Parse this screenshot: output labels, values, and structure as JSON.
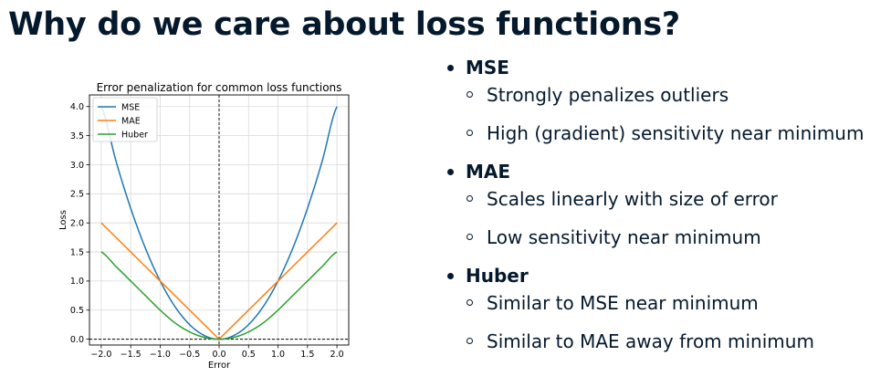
{
  "slide": {
    "title": "Why do we care about loss functions?"
  },
  "bullets": [
    {
      "heading": "MSE",
      "subs": [
        "Strongly penalizes outliers",
        "High (gradient) sensitivity near minimum"
      ]
    },
    {
      "heading": "MAE",
      "subs": [
        "Scales linearly with size of error",
        "Low sensitivity near minimum"
      ]
    },
    {
      "heading": "Huber",
      "subs": [
        "Similar to MSE near minimum",
        "Similar to MAE away from minimum"
      ]
    }
  ],
  "chart_data": {
    "type": "line",
    "title": "Error penalization for common loss functions",
    "xlabel": "Error",
    "ylabel": "Loss",
    "xlim": [
      -2.2,
      2.2
    ],
    "ylim": [
      -0.1,
      4.2
    ],
    "xticks": [
      -2.0,
      -1.5,
      -1.0,
      -0.5,
      0.0,
      0.5,
      1.0,
      1.5,
      2.0
    ],
    "xtick_labels": [
      "−2.0",
      "−1.5",
      "−1.0",
      "−0.5",
      "0.0",
      "0.5",
      "1.0",
      "1.5",
      "2.0"
    ],
    "yticks": [
      0.0,
      0.5,
      1.0,
      1.5,
      2.0,
      2.5,
      3.0,
      3.5,
      4.0
    ],
    "ytick_labels": [
      "0.0",
      "0.5",
      "1.0",
      "1.5",
      "2.0",
      "2.5",
      "3.0",
      "3.5",
      "4.0"
    ],
    "grid": true,
    "legend": "top-left",
    "x": [
      -2.0,
      -1.75,
      -1.5,
      -1.25,
      -1.0,
      -0.75,
      -0.5,
      -0.25,
      0.0,
      0.25,
      0.5,
      0.75,
      1.0,
      1.25,
      1.5,
      1.75,
      2.0
    ],
    "series": [
      {
        "name": "MSE",
        "color": "#1f77b4",
        "values": [
          4.0,
          3.0625,
          2.25,
          1.5625,
          1.0,
          0.5625,
          0.25,
          0.0625,
          0.0,
          0.0625,
          0.25,
          0.5625,
          1.0,
          1.5625,
          2.25,
          3.0625,
          4.0
        ]
      },
      {
        "name": "MAE",
        "color": "#ff7f0e",
        "values": [
          2.0,
          1.75,
          1.5,
          1.25,
          1.0,
          0.75,
          0.5,
          0.25,
          0.0,
          0.25,
          0.5,
          0.75,
          1.0,
          1.25,
          1.5,
          1.75,
          2.0
        ]
      },
      {
        "name": "Huber",
        "color": "#2ca02c",
        "values": [
          1.5,
          1.25,
          1.0,
          0.75,
          0.5,
          0.28125,
          0.125,
          0.03125,
          0.0,
          0.03125,
          0.125,
          0.28125,
          0.5,
          0.75,
          1.0,
          1.25,
          1.5
        ]
      }
    ],
    "reference_lines": {
      "vertical_x": 0.0,
      "horizontal_y": 0.0,
      "style": "dashed"
    }
  }
}
